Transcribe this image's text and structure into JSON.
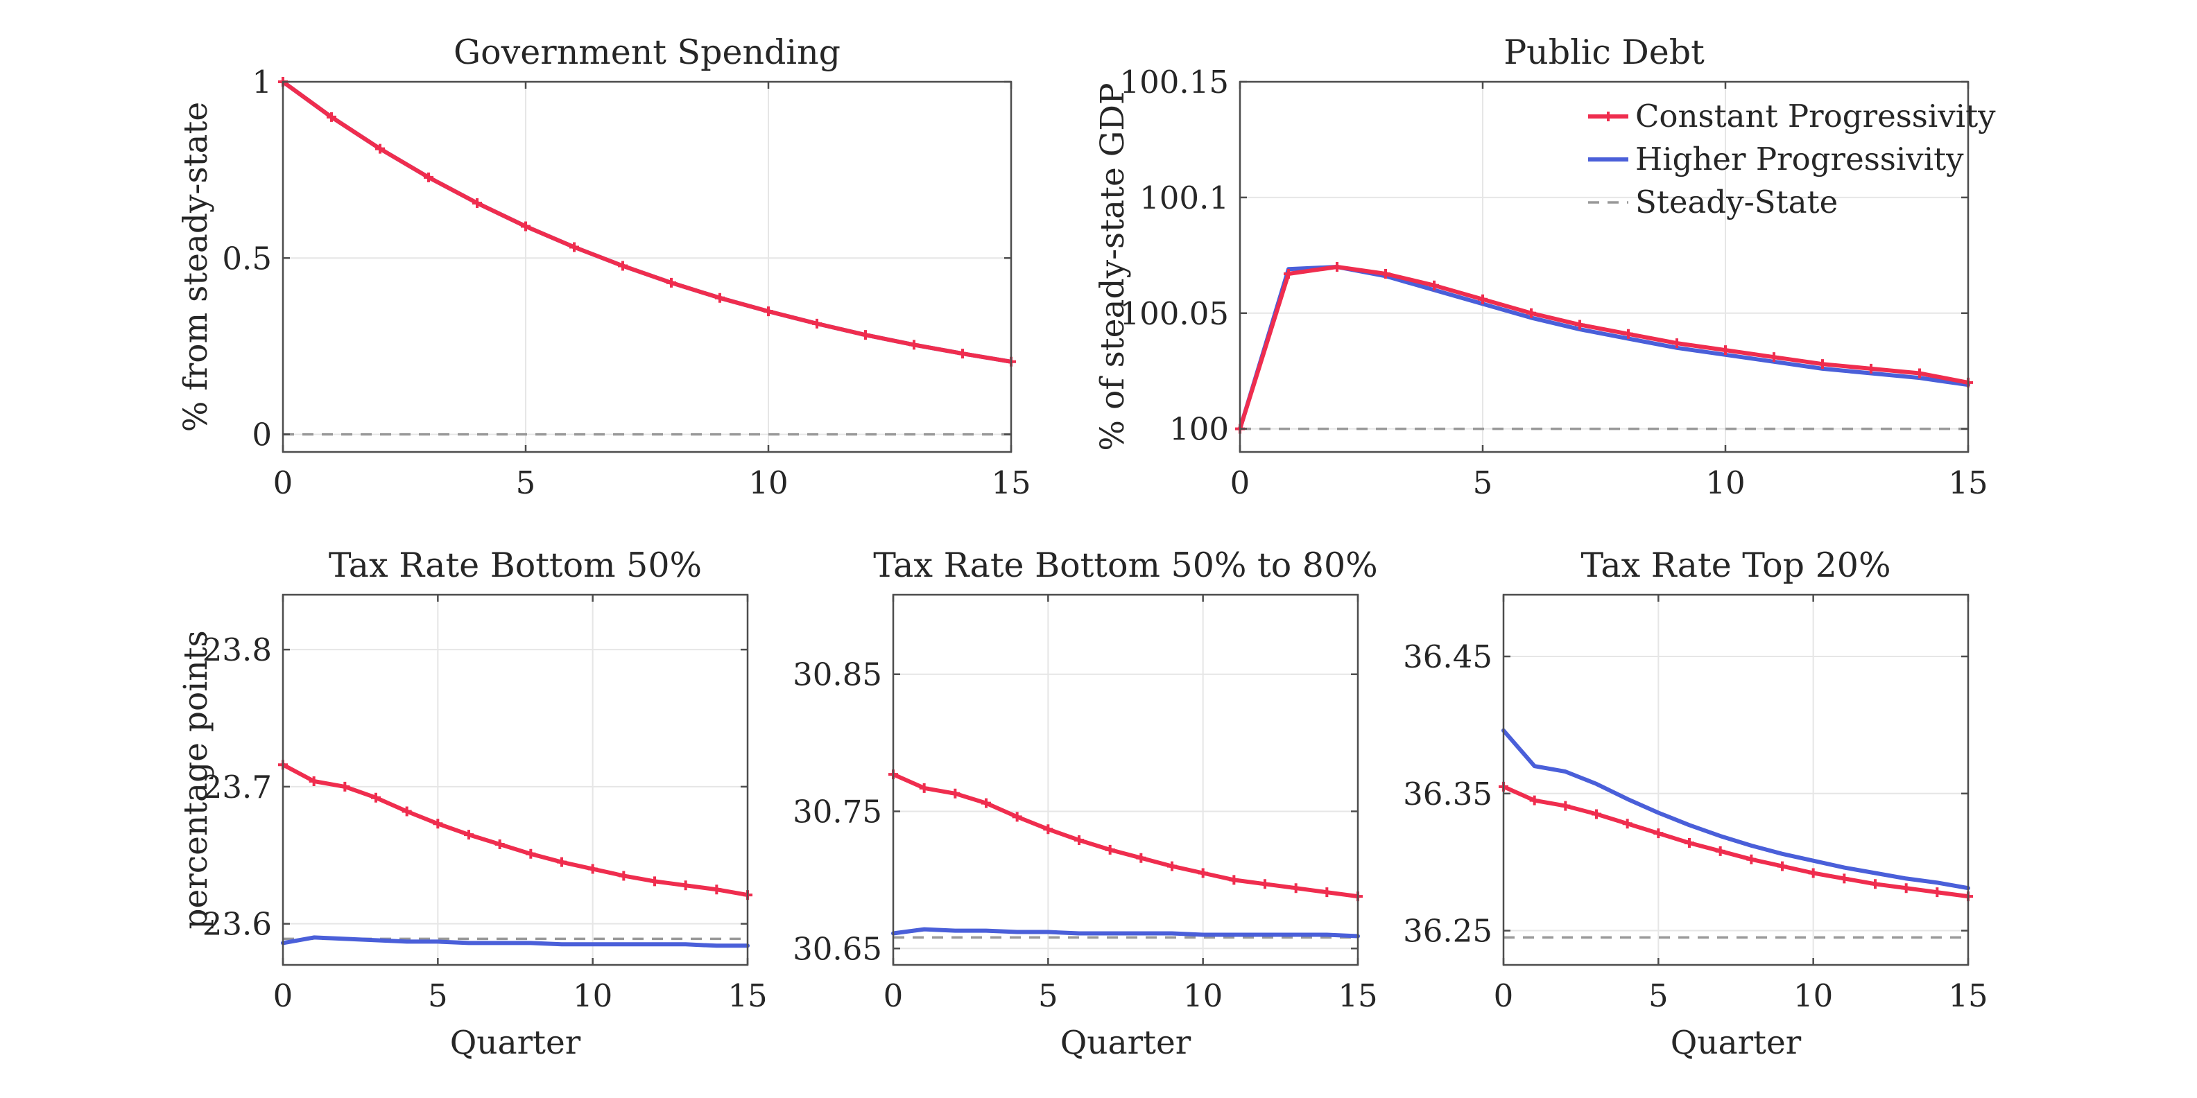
{
  "colors": {
    "constant": "#ef2d4e",
    "higher": "#4a5fd9",
    "steady": "#999999"
  },
  "legend": {
    "placement": "top-right",
    "entries": [
      "Constant Progressivity",
      "Higher Progressivity",
      "Steady-State"
    ]
  },
  "chart_data": [
    {
      "id": "gov",
      "type": "line",
      "title": "Government Spending",
      "xlabel": "",
      "ylabel": "% from steady-state",
      "xlim": [
        0,
        15
      ],
      "ylim": [
        -0.05,
        1.0
      ],
      "xticks": [
        0,
        5,
        10,
        15
      ],
      "yticks": [
        0,
        0.5,
        1
      ],
      "ytick_labels": [
        "0",
        "0.5",
        "1"
      ],
      "grid": true,
      "x": [
        0,
        1,
        2,
        3,
        4,
        5,
        6,
        7,
        8,
        9,
        10,
        11,
        12,
        13,
        14,
        15
      ],
      "series": [
        {
          "name": "Constant Progressivity",
          "key": "constant",
          "markers": true,
          "values": [
            1.0,
            0.9,
            0.81,
            0.729,
            0.656,
            0.59,
            0.531,
            0.478,
            0.43,
            0.387,
            0.349,
            0.314,
            0.282,
            0.254,
            0.229,
            0.206
          ]
        },
        {
          "name": "Higher Progressivity",
          "key": "higher",
          "markers": false,
          "values": [
            1.0,
            0.9,
            0.81,
            0.729,
            0.656,
            0.59,
            0.531,
            0.478,
            0.43,
            0.387,
            0.349,
            0.314,
            0.282,
            0.254,
            0.229,
            0.206
          ]
        },
        {
          "name": "Steady-State",
          "key": "steady",
          "dashed": true,
          "values": [
            0,
            0,
            0,
            0,
            0,
            0,
            0,
            0,
            0,
            0,
            0,
            0,
            0,
            0,
            0,
            0
          ]
        }
      ]
    },
    {
      "id": "debt",
      "type": "line",
      "title": "Public Debt",
      "xlabel": "",
      "ylabel": "% of steady-state GDP",
      "xlim": [
        0,
        15
      ],
      "ylim": [
        99.99,
        100.15
      ],
      "xticks": [
        0,
        5,
        10,
        15
      ],
      "yticks": [
        100,
        100.05,
        100.1,
        100.15
      ],
      "ytick_labels": [
        "100",
        "100.05",
        "100.1",
        "100.15"
      ],
      "grid": true,
      "legend": true,
      "x": [
        0,
        1,
        2,
        3,
        4,
        5,
        6,
        7,
        8,
        9,
        10,
        11,
        12,
        13,
        14,
        15
      ],
      "series": [
        {
          "name": "Constant Progressivity",
          "key": "constant",
          "markers": true,
          "values": [
            100.0,
            100.067,
            100.07,
            100.067,
            100.062,
            100.056,
            100.05,
            100.045,
            100.041,
            100.037,
            100.034,
            100.031,
            100.028,
            100.026,
            100.024,
            100.02
          ]
        },
        {
          "name": "Higher Progressivity",
          "key": "higher",
          "markers": false,
          "values": [
            100.0,
            100.069,
            100.07,
            100.066,
            100.06,
            100.054,
            100.048,
            100.043,
            100.039,
            100.035,
            100.032,
            100.029,
            100.026,
            100.024,
            100.022,
            100.019
          ]
        },
        {
          "name": "Steady-State",
          "key": "steady",
          "dashed": true,
          "values": [
            100,
            100,
            100,
            100,
            100,
            100,
            100,
            100,
            100,
            100,
            100,
            100,
            100,
            100,
            100,
            100
          ]
        }
      ]
    },
    {
      "id": "tax1",
      "type": "line",
      "title": "Tax Rate Bottom 50%",
      "xlabel": "Quarter",
      "ylabel": "percentage points",
      "xlim": [
        0,
        15
      ],
      "ylim": [
        23.57,
        23.84
      ],
      "xticks": [
        0,
        5,
        10,
        15
      ],
      "yticks": [
        23.6,
        23.7,
        23.8
      ],
      "ytick_labels": [
        "23.6",
        "23.7",
        "23.8"
      ],
      "grid": true,
      "x": [
        0,
        1,
        2,
        3,
        4,
        5,
        6,
        7,
        8,
        9,
        10,
        11,
        12,
        13,
        14,
        15
      ],
      "series": [
        {
          "name": "Constant Progressivity",
          "key": "constant",
          "markers": true,
          "values": [
            23.716,
            23.704,
            23.7,
            23.692,
            23.682,
            23.673,
            23.665,
            23.658,
            23.651,
            23.645,
            23.64,
            23.635,
            23.631,
            23.628,
            23.625,
            23.621
          ]
        },
        {
          "name": "Higher Progressivity",
          "key": "higher",
          "markers": false,
          "values": [
            23.586,
            23.59,
            23.589,
            23.588,
            23.587,
            23.587,
            23.586,
            23.586,
            23.586,
            23.585,
            23.585,
            23.585,
            23.585,
            23.585,
            23.584,
            23.584
          ]
        },
        {
          "name": "Steady-State",
          "key": "steady",
          "dashed": true,
          "values": [
            23.589,
            23.589,
            23.589,
            23.589,
            23.589,
            23.589,
            23.589,
            23.589,
            23.589,
            23.589,
            23.589,
            23.589,
            23.589,
            23.589,
            23.589,
            23.589
          ]
        }
      ]
    },
    {
      "id": "tax2",
      "type": "line",
      "title": "Tax Rate Bottom 50% to 80%",
      "xlabel": "Quarter",
      "ylabel": "",
      "xlim": [
        0,
        15
      ],
      "ylim": [
        30.638,
        30.908
      ],
      "xticks": [
        0,
        5,
        10,
        15
      ],
      "yticks": [
        30.65,
        30.75,
        30.85
      ],
      "ytick_labels": [
        "30.65",
        "30.75",
        "30.85"
      ],
      "grid": true,
      "x": [
        0,
        1,
        2,
        3,
        4,
        5,
        6,
        7,
        8,
        9,
        10,
        11,
        12,
        13,
        14,
        15
      ],
      "series": [
        {
          "name": "Constant Progressivity",
          "key": "constant",
          "markers": true,
          "values": [
            30.777,
            30.767,
            30.763,
            30.756,
            30.746,
            30.737,
            30.729,
            30.722,
            30.716,
            30.71,
            30.705,
            30.7,
            30.697,
            30.694,
            30.691,
            30.688
          ]
        },
        {
          "name": "Higher Progressivity",
          "key": "higher",
          "markers": false,
          "values": [
            30.661,
            30.664,
            30.663,
            30.663,
            30.662,
            30.662,
            30.661,
            30.661,
            30.661,
            30.661,
            30.66,
            30.66,
            30.66,
            30.66,
            30.66,
            30.659
          ]
        },
        {
          "name": "Steady-State",
          "key": "steady",
          "dashed": true,
          "values": [
            30.658,
            30.658,
            30.658,
            30.658,
            30.658,
            30.658,
            30.658,
            30.658,
            30.658,
            30.658,
            30.658,
            30.658,
            30.658,
            30.658,
            30.658,
            30.658
          ]
        }
      ]
    },
    {
      "id": "tax3",
      "type": "line",
      "title": "Tax Rate Top 20%",
      "xlabel": "Quarter",
      "ylabel": "",
      "xlim": [
        0,
        15
      ],
      "ylim": [
        36.225,
        36.495
      ],
      "xticks": [
        0,
        5,
        10,
        15
      ],
      "yticks": [
        36.25,
        36.35,
        36.45
      ],
      "ytick_labels": [
        "36.25",
        "36.35",
        "36.45"
      ],
      "grid": true,
      "x": [
        0,
        1,
        2,
        3,
        4,
        5,
        6,
        7,
        8,
        9,
        10,
        11,
        12,
        13,
        14,
        15
      ],
      "series": [
        {
          "name": "Constant Progressivity",
          "key": "constant",
          "markers": true,
          "values": [
            36.355,
            36.345,
            36.341,
            36.335,
            36.328,
            36.321,
            36.314,
            36.308,
            36.302,
            36.297,
            36.292,
            36.288,
            36.284,
            36.281,
            36.278,
            36.275
          ]
        },
        {
          "name": "Higher Progressivity",
          "key": "higher",
          "markers": false,
          "values": [
            36.396,
            36.37,
            36.366,
            36.357,
            36.346,
            36.336,
            36.327,
            36.319,
            36.312,
            36.306,
            36.301,
            36.296,
            36.292,
            36.288,
            36.285,
            36.281
          ]
        },
        {
          "name": "Steady-State",
          "key": "steady",
          "dashed": true,
          "values": [
            36.245,
            36.245,
            36.245,
            36.245,
            36.245,
            36.245,
            36.245,
            36.245,
            36.245,
            36.245,
            36.245,
            36.245,
            36.245,
            36.245,
            36.245,
            36.245
          ]
        }
      ]
    }
  ]
}
